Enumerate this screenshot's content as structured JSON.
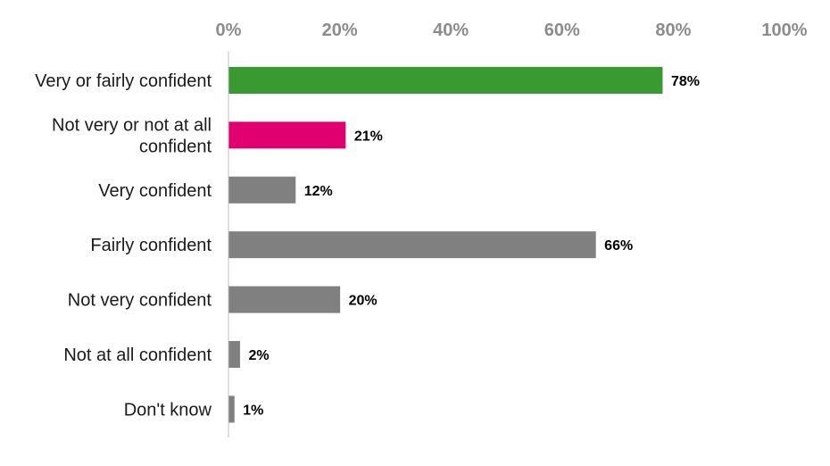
{
  "chart_data": {
    "type": "bar",
    "orientation": "horizontal",
    "title": "",
    "xlabel": "",
    "ylabel": "",
    "xlim": [
      0,
      100
    ],
    "ticks": [
      0,
      20,
      40,
      60,
      80,
      100
    ],
    "tick_labels": [
      "0%",
      "20%",
      "40%",
      "60%",
      "80%",
      "100%"
    ],
    "axis_position": "top",
    "grid": false,
    "categories": [
      [
        "Very or fairly confident"
      ],
      [
        "Not very or not at all",
        "confident"
      ],
      [
        "Very confident"
      ],
      [
        "Fairly confident"
      ],
      [
        "Not very confident"
      ],
      [
        "Not at all confident"
      ],
      [
        "Don't know"
      ]
    ],
    "values": [
      78,
      21,
      12,
      66,
      20,
      2,
      1
    ],
    "value_labels": [
      "78%",
      "21%",
      "12%",
      "66%",
      "20%",
      "2%",
      "1%"
    ],
    "colors": [
      "#3a9a32",
      "#e0006f",
      "#808080",
      "#808080",
      "#808080",
      "#808080",
      "#808080"
    ]
  }
}
